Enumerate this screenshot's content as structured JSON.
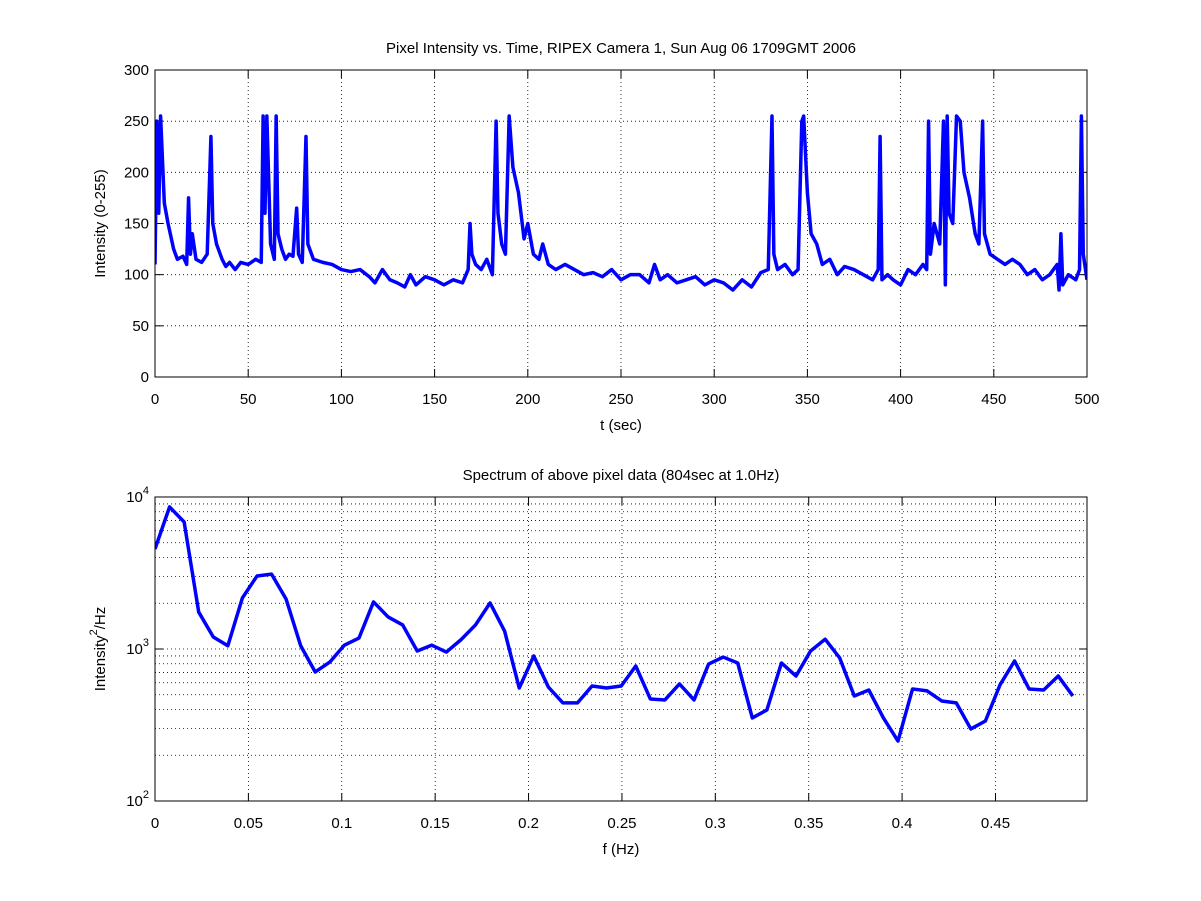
{
  "chart_data": [
    {
      "type": "line",
      "title": "Pixel Intensity vs. Time, RIPEX Camera 1, Sun Aug 06 1709GMT 2006",
      "xlabel": "t (sec)",
      "ylabel": "Intensity (0-255)",
      "color": "#0000ff",
      "grid": true,
      "xlim": [
        0,
        500
      ],
      "xticks": [
        0,
        50,
        100,
        150,
        200,
        250,
        300,
        350,
        400,
        450,
        500
      ],
      "ylim": [
        0,
        300
      ],
      "yticks": [
        0,
        50,
        100,
        150,
        200,
        250,
        300
      ],
      "x": [
        0,
        1,
        2,
        3,
        5,
        7,
        10,
        12,
        15,
        17,
        18,
        19,
        20,
        22,
        25,
        28,
        30,
        31,
        33,
        36,
        38,
        40,
        43,
        46,
        50,
        54,
        57,
        58,
        59,
        60,
        62,
        64,
        65,
        66,
        68,
        70,
        72,
        74,
        76,
        77,
        79,
        81,
        82,
        85,
        90,
        95,
        100,
        105,
        110,
        115,
        118,
        122,
        126,
        130,
        134,
        137,
        140,
        145,
        150,
        155,
        160,
        165,
        168,
        169,
        170,
        172,
        175,
        178,
        181,
        183,
        184,
        186,
        188,
        190,
        192,
        195,
        198,
        200,
        203,
        206,
        208,
        211,
        215,
        220,
        225,
        230,
        235,
        240,
        245,
        250,
        255,
        260,
        265,
        268,
        271,
        275,
        280,
        285,
        290,
        295,
        300,
        305,
        310,
        315,
        320,
        325,
        329,
        331,
        332,
        334,
        338,
        342,
        345,
        347,
        348,
        350,
        352,
        355,
        358,
        362,
        366,
        370,
        375,
        380,
        385,
        388,
        389,
        390,
        393,
        396,
        400,
        404,
        408,
        412,
        414,
        415,
        416,
        418,
        421,
        423,
        424,
        425,
        426,
        428,
        430,
        432,
        434,
        437,
        440,
        442,
        444,
        445,
        448,
        452,
        456,
        460,
        464,
        468,
        472,
        476,
        480,
        484,
        485,
        486,
        487,
        490,
        494,
        496,
        497,
        498,
        500
      ],
      "values": [
        110,
        250,
        160,
        255,
        170,
        150,
        125,
        115,
        118,
        110,
        175,
        120,
        140,
        115,
        112,
        120,
        235,
        150,
        130,
        115,
        108,
        112,
        105,
        112,
        110,
        115,
        112,
        255,
        160,
        255,
        130,
        115,
        255,
        140,
        125,
        115,
        120,
        118,
        165,
        120,
        112,
        235,
        130,
        115,
        112,
        110,
        105,
        103,
        105,
        98,
        92,
        105,
        95,
        92,
        88,
        100,
        90,
        98,
        95,
        90,
        95,
        92,
        105,
        150,
        120,
        110,
        105,
        115,
        100,
        250,
        160,
        130,
        120,
        255,
        205,
        180,
        135,
        150,
        120,
        115,
        130,
        110,
        105,
        110,
        105,
        100,
        102,
        98,
        105,
        95,
        100,
        100,
        92,
        110,
        95,
        100,
        92,
        95,
        98,
        90,
        95,
        92,
        85,
        95,
        88,
        102,
        105,
        255,
        120,
        105,
        110,
        100,
        105,
        250,
        255,
        180,
        140,
        130,
        110,
        115,
        100,
        108,
        105,
        100,
        95,
        105,
        235,
        95,
        100,
        95,
        90,
        105,
        100,
        110,
        105,
        250,
        120,
        150,
        130,
        250,
        90,
        255,
        160,
        150,
        255,
        250,
        200,
        175,
        140,
        130,
        250,
        140,
        120,
        115,
        110,
        115,
        110,
        100,
        105,
        95,
        100,
        110,
        85,
        140,
        90,
        100,
        95,
        105,
        255,
        120,
        95
      ]
    },
    {
      "type": "line",
      "title": "Spectrum of above pixel data (804sec at 1.0Hz)",
      "xlabel": "f (Hz)",
      "ylabel": "Intensity^2/Hz",
      "color": "#0000ff",
      "grid": true,
      "log_y": true,
      "xlim": [
        0,
        0.499
      ],
      "xticks": [
        0,
        0.05,
        0.1,
        0.15,
        0.2,
        0.25,
        0.3,
        0.35,
        0.4,
        0.45
      ],
      "ylim": [
        100,
        10000
      ],
      "yticks": [
        {
          "value": 100,
          "label": "10^2"
        },
        {
          "value": 1000,
          "label": "10^3"
        },
        {
          "value": 10000,
          "label": "10^4"
        }
      ],
      "x": [
        0,
        0.0078,
        0.0156,
        0.0234,
        0.0312,
        0.039,
        0.0468,
        0.0546,
        0.0624,
        0.0702,
        0.078,
        0.0858,
        0.0936,
        0.1014,
        0.1092,
        0.117,
        0.1248,
        0.1326,
        0.1404,
        0.1482,
        0.156,
        0.1638,
        0.1716,
        0.1794,
        0.1872,
        0.195,
        0.2028,
        0.2106,
        0.2184,
        0.2262,
        0.234,
        0.2418,
        0.2496,
        0.2574,
        0.2652,
        0.273,
        0.2808,
        0.2886,
        0.2964,
        0.3042,
        0.312,
        0.3198,
        0.3276,
        0.3354,
        0.3432,
        0.351,
        0.3588,
        0.3666,
        0.3744,
        0.3822,
        0.39,
        0.3978,
        0.4056,
        0.4134,
        0.4212,
        0.429,
        0.4368,
        0.4446,
        0.4524,
        0.4602,
        0.468,
        0.4758,
        0.4836,
        0.4914
      ],
      "values": [
        4550,
        8600,
        6850,
        1750,
        1200,
        1050,
        2170,
        3020,
        3110,
        2130,
        1050,
        706,
        820,
        1060,
        1180,
        2040,
        1625,
        1440,
        970,
        1060,
        955,
        1150,
        1440,
        2010,
        1310,
        554,
        900,
        562,
        442,
        442,
        571,
        554,
        571,
        773,
        469,
        462,
        589,
        462,
        796,
        885,
        809,
        352,
        397,
        809,
        664,
        970,
        1160,
        873,
        491,
        537,
        352,
        248,
        546,
        530,
        455,
        442,
        298,
        336,
        580,
        834,
        546,
        537,
        664,
        491
      ]
    }
  ]
}
